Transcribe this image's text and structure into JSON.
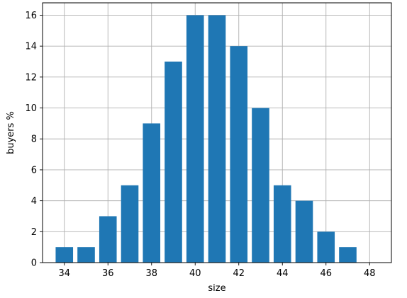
{
  "chart_data": {
    "type": "bar",
    "categories": [
      34,
      35,
      36,
      37,
      38,
      39,
      40,
      41,
      42,
      43,
      44,
      45,
      46,
      47
    ],
    "values": [
      1,
      1,
      3,
      5,
      9,
      13,
      16,
      16,
      14,
      10,
      5,
      4,
      2,
      1
    ],
    "title": "",
    "xlabel": "size",
    "ylabel": "buyers %",
    "xlim": [
      33.0,
      49.0
    ],
    "ylim": [
      0,
      16.8
    ],
    "xticks": [
      34,
      36,
      38,
      40,
      42,
      44,
      46,
      48
    ],
    "yticks": [
      0,
      2,
      4,
      6,
      8,
      10,
      12,
      14,
      16
    ],
    "grid": true,
    "bar_color": "#1f77b4"
  }
}
